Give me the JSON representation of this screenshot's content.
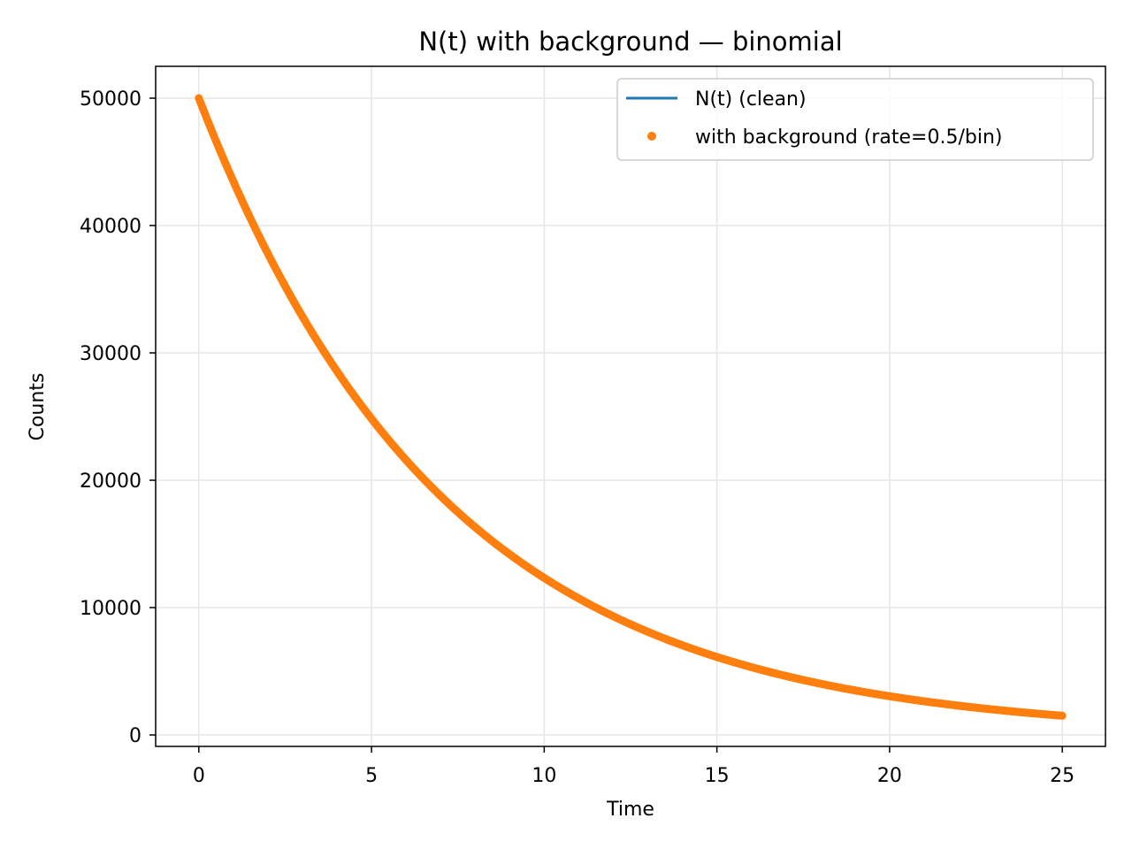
{
  "chart_data": {
    "type": "line",
    "title": "N(t) with background — binomial",
    "xlabel": "Time",
    "ylabel": "Counts",
    "xlim": [
      -1.25,
      26.25
    ],
    "ylim": [
      -900,
      52500
    ],
    "xticks": [
      0,
      5,
      10,
      15,
      20,
      25
    ],
    "xtick_labels": [
      "0",
      "5",
      "10",
      "15",
      "20",
      "25"
    ],
    "yticks": [
      0,
      10000,
      20000,
      30000,
      40000,
      50000
    ],
    "ytick_labels": [
      "0",
      "10000",
      "20000",
      "30000",
      "40000",
      "50000"
    ],
    "grid": true,
    "legend_position": "top-right",
    "model": {
      "N0": 50000,
      "decay_rate": 0.14,
      "t_start": 0,
      "t_end": 25,
      "background_rate": 0.5
    },
    "series": [
      {
        "name": "N(t) (clean)",
        "style": "line",
        "color": "#1f77b4",
        "x": [
          0,
          1,
          2,
          3,
          4,
          5,
          6,
          7,
          8,
          9,
          10,
          11,
          12,
          13,
          14,
          15,
          16,
          17,
          18,
          19,
          20,
          21,
          22,
          23,
          24,
          25
        ],
        "values": [
          50000,
          43470,
          37790,
          32850,
          28560,
          24830,
          21590,
          18770,
          16320,
          14190,
          12330,
          10720,
          9320,
          8100,
          7050,
          6120,
          5330,
          4630,
          4030,
          3500,
          3040,
          2650,
          2300,
          2000,
          1740,
          1510
        ]
      },
      {
        "name": "with background (rate=0.5/bin)",
        "style": "markers",
        "color": "#ff7f0e",
        "x": [
          0,
          1,
          2,
          3,
          4,
          5,
          6,
          7,
          8,
          9,
          10,
          11,
          12,
          13,
          14,
          15,
          16,
          17,
          18,
          19,
          20,
          21,
          22,
          23,
          24,
          25
        ],
        "values": [
          50000,
          43470,
          37790,
          32850,
          28560,
          24830,
          21590,
          18770,
          16320,
          14190,
          12330,
          10720,
          9320,
          8100,
          7050,
          6120,
          5330,
          4630,
          4030,
          3500,
          3040,
          2650,
          2300,
          2000,
          1740,
          1510
        ]
      }
    ]
  }
}
